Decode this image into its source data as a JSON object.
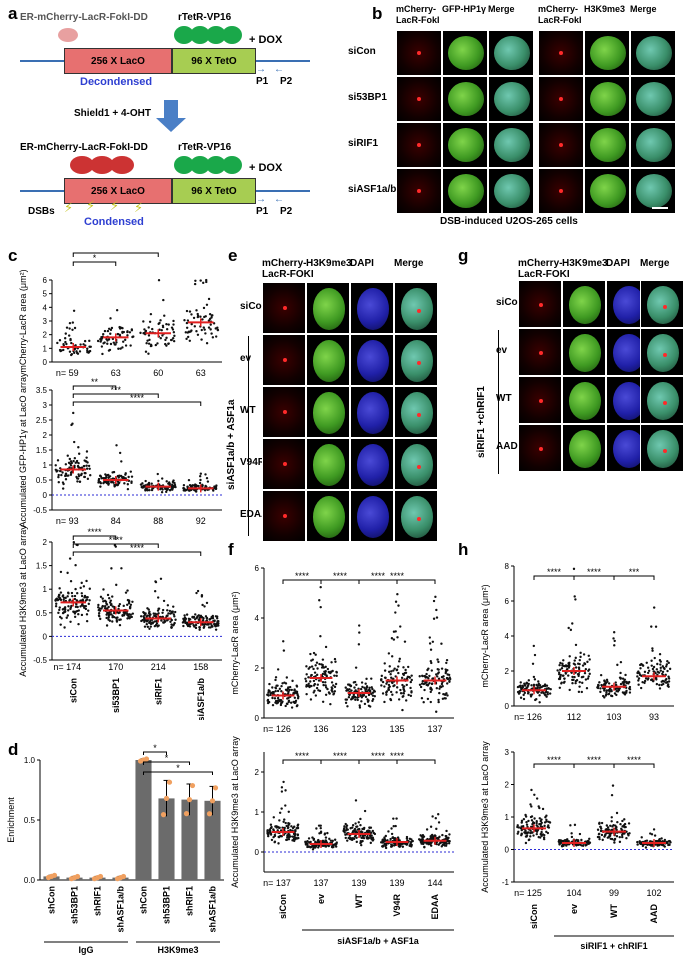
{
  "panels": {
    "a": {
      "letter": "a",
      "top_construct": "ER-mCherry-LacR-FokI-DD",
      "lacO": "256 X LacO",
      "tetO": "96 X TetO",
      "vp16": "rTetR-VP16",
      "dox": "+ DOX",
      "decondensed": "Decondensed",
      "p1": "P1",
      "p2": "P2",
      "treatment": "Shield1 + 4-OHT",
      "bottom_construct": "ER-mCherry-LacR-FokI-DD",
      "vp16_b": "rTetR-VP16",
      "dox_b": "+ DOX",
      "lacO_b": "256 X LacO",
      "tetO_b": "96 X TetO",
      "dsbs": "DSBs",
      "condensed": "Condensed",
      "p1_b": "P1",
      "p2_b": "P2"
    },
    "b": {
      "letter": "b",
      "col_headers": [
        "mCherry-LacR-FokI",
        "GFP-HP1γ",
        "Merge",
        "mCherry-LacR-FokI",
        "H3K9me3",
        "Merge"
      ],
      "rows": [
        "siCon",
        "si53BP1",
        "siRIF1",
        "siASF1a/b"
      ],
      "caption": "DSB-induced U2OS-265 cells"
    },
    "e": {
      "letter": "e",
      "col_headers": [
        "mCherry-LacR-FOKI",
        "H3K9me3",
        "DAPI",
        "Merge"
      ],
      "rows": [
        "siCon",
        "ev",
        "WT",
        "V94R",
        "EDAA"
      ],
      "group_label": "siASF1a/b + ASF1a"
    },
    "g": {
      "letter": "g",
      "col_headers": [
        "mCherry-LacR-FOKI",
        "H3K9me3",
        "DAPI",
        "Merge"
      ],
      "rows": [
        "siCon",
        "ev",
        "WT",
        "AAD"
      ],
      "group_label": "siRIF1 +chRIF1"
    },
    "c": {
      "letter": "c",
      "plot1_ylabel": "mCherry-LacR  area (μm²)",
      "plot1_n": [
        "n= 59",
        "63",
        "60",
        "63"
      ],
      "plot1_sig": [
        "*",
        "***",
        "****"
      ],
      "plot2_ylabel": "Accumulated GFP-HP1γ at LacO array",
      "plot2_n": [
        "n= 93",
        "84",
        "88",
        "92"
      ],
      "plot2_sig": [
        "**",
        "***",
        "****"
      ],
      "plot3_ylabel": "Accumulated H3K9me3 at LacO array",
      "plot3_n": [
        "n= 174",
        "170",
        "214",
        "158"
      ],
      "plot3_sig": [
        "****",
        "****",
        "****"
      ],
      "categories": [
        "siCon",
        "si53BP1",
        "siRIF1",
        "siASF1a/b"
      ]
    },
    "d": {
      "letter": "d",
      "ylabel": "Enrichment",
      "categories": [
        "shCon",
        "sh53BP1",
        "shRIF1",
        "shASF1a/b",
        "shCon",
        "sh53BP1",
        "shRIF1",
        "shASF1a/b"
      ],
      "group1": "IgG",
      "group2": "H3K9me3",
      "sig": [
        "*",
        "*",
        "*"
      ]
    },
    "f": {
      "letter": "f",
      "plot1_ylabel": "mCherry-LacR area (μm²)",
      "plot1_n": [
        "n= 126",
        "136",
        "123",
        "135",
        "137"
      ],
      "plot2_ylabel": "Accumulated H3K9me3 at LacO array",
      "plot2_n": [
        "n= 137",
        "137",
        "139",
        "139",
        "144"
      ],
      "sig": "****",
      "categories": [
        "siCon",
        "ev",
        "WT",
        "V94R",
        "EDAA"
      ],
      "group_label": "siASF1a/b + ASF1a"
    },
    "h": {
      "letter": "h",
      "plot1_ylabel": "mCherry-LacR area (μm²)",
      "plot1_n": [
        "n= 126",
        "112",
        "103",
        "93"
      ],
      "plot1_sig": [
        "****",
        "****",
        "***"
      ],
      "plot2_ylabel": "Accumulated H3K9me3 at LacO array",
      "plot2_n": [
        "n= 125",
        "104",
        "99",
        "102"
      ],
      "plot2_sig": [
        "****",
        "****",
        "****"
      ],
      "categories": [
        "siCon",
        "ev",
        "WT",
        "AAD"
      ],
      "group_label": "siRIF1 + chRIF1"
    }
  },
  "chart_data": [
    {
      "type": "scatter",
      "panel": "c-top",
      "ylabel": "mCherry-LacR  area (μm²)",
      "categories": [
        "siCon",
        "si53BP1",
        "siRIF1",
        "siASF1a/b"
      ],
      "means": [
        1.1,
        1.8,
        2.1,
        2.9
      ],
      "ylim": [
        0,
        6
      ],
      "yticks": [
        0,
        1,
        2,
        3,
        4,
        5,
        6
      ],
      "n": [
        59,
        63,
        60,
        63
      ]
    },
    {
      "type": "scatter",
      "panel": "c-mid",
      "ylabel": "Accumulated GFP-HP1γ at LacO array",
      "categories": [
        "siCon",
        "si53BP1",
        "siRIF1",
        "siASF1a/b"
      ],
      "means": [
        0.85,
        0.5,
        0.28,
        0.22
      ],
      "ylim": [
        -0.5,
        3.5
      ],
      "yticks": [
        -0.5,
        0.0,
        0.5,
        1.0,
        1.5,
        2.0,
        2.5,
        3.0,
        3.5
      ],
      "n": [
        93,
        84,
        88,
        92
      ]
    },
    {
      "type": "scatter",
      "panel": "c-bot",
      "ylabel": "Accumulated H3K9me3 at LacO array",
      "categories": [
        "siCon",
        "si53BP1",
        "siRIF1",
        "siASF1a/b"
      ],
      "means": [
        0.72,
        0.55,
        0.38,
        0.3
      ],
      "ylim": [
        -0.5,
        2.0
      ],
      "yticks": [
        -0.5,
        0.0,
        0.5,
        1.0,
        1.5,
        2.0
      ],
      "n": [
        174,
        170,
        214,
        158
      ]
    },
    {
      "type": "bar",
      "panel": "d",
      "ylabel": "Enrichment",
      "categories": [
        "shCon",
        "sh53BP1",
        "shRIF1",
        "shASF1a/b",
        "shCon",
        "sh53BP1",
        "shRIF1",
        "shASF1a/b"
      ],
      "values": [
        0.03,
        0.02,
        0.02,
        0.02,
        1.0,
        0.68,
        0.67,
        0.66
      ],
      "errors": [
        0.01,
        0.01,
        0.01,
        0.01,
        0.01,
        0.15,
        0.13,
        0.12
      ],
      "ylim": [
        0,
        1.0
      ],
      "yticks": [
        0.0,
        0.5,
        1.0
      ]
    },
    {
      "type": "scatter",
      "panel": "f-top",
      "ylabel": "mCherry-LacR area (μm²)",
      "categories": [
        "siCon",
        "ev",
        "WT",
        "V94R",
        "EDAA"
      ],
      "means": [
        0.9,
        1.6,
        1.0,
        1.5,
        1.5
      ],
      "ylim": [
        0,
        6
      ],
      "yticks": [
        0,
        2,
        4,
        6
      ],
      "n": [
        126,
        136,
        123,
        135,
        137
      ]
    },
    {
      "type": "scatter",
      "panel": "f-bot",
      "ylabel": "Accumulated H3K9me3 at LacO array",
      "categories": [
        "siCon",
        "ev",
        "WT",
        "V94R",
        "EDAA"
      ],
      "means": [
        0.5,
        0.2,
        0.45,
        0.25,
        0.28
      ],
      "ylim": [
        -0.5,
        2.5
      ],
      "yticks": [
        0,
        1,
        2
      ],
      "n": [
        137,
        137,
        139,
        139,
        144
      ]
    },
    {
      "type": "scatter",
      "panel": "h-top",
      "ylabel": "mCherry-LacR area (μm²)",
      "categories": [
        "siCon",
        "ev",
        "WT",
        "AAD"
      ],
      "means": [
        0.9,
        2.0,
        1.1,
        1.7
      ],
      "ylim": [
        0,
        8
      ],
      "yticks": [
        0,
        2,
        4,
        6,
        8
      ],
      "n": [
        126,
        112,
        103,
        93
      ]
    },
    {
      "type": "scatter",
      "panel": "h-bot",
      "ylabel": "Accumulated H3K9me3 at LacO array",
      "categories": [
        "siCon",
        "ev",
        "WT",
        "AAD"
      ],
      "means": [
        0.65,
        0.2,
        0.55,
        0.2
      ],
      "ylim": [
        -1,
        3
      ],
      "yticks": [
        -1,
        0,
        1,
        2,
        3
      ],
      "n": [
        125,
        104,
        99,
        102
      ]
    }
  ]
}
